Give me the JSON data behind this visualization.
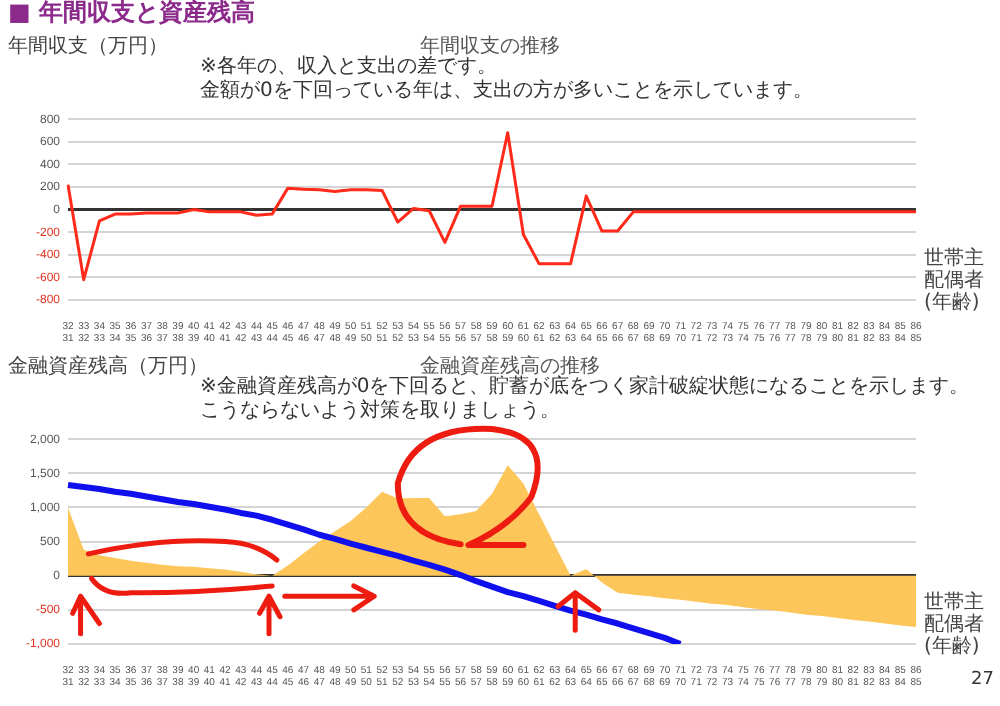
{
  "chart_data": [
    {
      "type": "line",
      "title": "年間収支の推移",
      "ylabel": "年間収支（万円）",
      "xlabel": "世帯主配偶者(年齢)",
      "annotations": [
        "■ 年間収支と資産残高",
        "※各年の、収入と支出の差です。",
        "金額が0を下回っている年は、支出の方が多いことを示しています。"
      ],
      "categories": [
        "32\n31",
        "33\n32",
        "34\n33",
        "35\n34",
        "36\n35",
        "37\n36",
        "38\n37",
        "39\n38",
        "40\n39",
        "41\n40",
        "42\n41",
        "43\n42",
        "44\n43",
        "45\n44",
        "46\n45",
        "47\n46",
        "48\n47",
        "49\n48",
        "50\n49",
        "51\n50",
        "52\n51",
        "53\n52",
        "54\n53",
        "55\n54",
        "56\n55",
        "57\n56",
        "58\n57",
        "59\n58",
        "60\n59",
        "61\n60",
        "62\n61",
        "63\n62",
        "64\n63",
        "65\n64",
        "66\n65",
        "67\n66",
        "68\n67",
        "69\n68",
        "70\n69",
        "71\n70",
        "72\n71",
        "73\n72",
        "74\n73",
        "75\n74",
        "76\n75",
        "77\n76",
        "78\n77",
        "79\n78",
        "80\n79",
        "81\n80",
        "82\n81",
        "83\n82",
        "84\n83",
        "85\n84",
        "86\n85"
      ],
      "series": [
        {
          "color": "#ff2a1a",
          "values": [
            220,
            -620,
            -100,
            -40,
            -40,
            -30,
            -30,
            -30,
            0,
            -20,
            -20,
            -20,
            -50,
            -40,
            190,
            180,
            175,
            160,
            175,
            175,
            170,
            -110,
            10,
            -10,
            -290,
            30,
            30,
            30,
            680,
            -220,
            -480,
            -480,
            -480,
            120,
            -190,
            -190,
            -20,
            -20,
            -20,
            -20,
            -20,
            -20,
            -20,
            -20,
            -20,
            -20,
            -20,
            -20,
            -20,
            -20,
            -20,
            -20,
            -20,
            -20,
            -20
          ]
        }
      ],
      "ylim": [
        -800,
        800
      ],
      "yticks": [
        -800,
        -600,
        -400,
        -200,
        0,
        200,
        400,
        600,
        800
      ],
      "grid": "y",
      "marker": "none"
    },
    {
      "type": "area",
      "title": "金融資産残高の推移",
      "ylabel": "金融資産残高（万円）",
      "xlabel": "世帯主配偶者(年齢)",
      "annotations": [
        "※金融資産残高が0を下回ると、貯蓄が底をつく家計破綻状態になることを示します。",
        "こうならないよう対策を取りましょう。",
        "27"
      ],
      "categories": [
        "32\n31",
        "33\n32",
        "34\n33",
        "35\n34",
        "36\n35",
        "37\n36",
        "38\n37",
        "39\n38",
        "40\n39",
        "41\n40",
        "42\n41",
        "43\n42",
        "44\n43",
        "45\n44",
        "46\n45",
        "47\n46",
        "48\n47",
        "49\n48",
        "50\n49",
        "51\n50",
        "52\n51",
        "53\n52",
        "54\n53",
        "55\n54",
        "56\n55",
        "57\n56",
        "58\n57",
        "59\n58",
        "60\n59",
        "61\n60",
        "62\n61",
        "63\n62",
        "64\n63",
        "65\n64",
        "66\n65",
        "67\n66",
        "68\n67",
        "69\n68",
        "70\n69",
        "71\n70",
        "72\n71",
        "73\n72",
        "74\n73",
        "75\n74",
        "76\n75",
        "77\n76",
        "78\n77",
        "79\n78",
        "80\n79",
        "81\n80",
        "82\n81",
        "83\n82",
        "84\n83",
        "85\n84",
        "86\n85"
      ],
      "series": [
        {
          "color": "#fcc65a",
          "values": [
            1000,
            380,
            300,
            260,
            220,
            190,
            160,
            140,
            130,
            110,
            90,
            60,
            20,
            0,
            150,
            330,
            500,
            650,
            800,
            1000,
            1230,
            1130,
            1140,
            1140,
            870,
            900,
            950,
            1200,
            1620,
            1350,
            900,
            450,
            0,
            100,
            -100,
            -250,
            -280,
            -300,
            -330,
            -350,
            -380,
            -410,
            -430,
            -460,
            -490,
            -510,
            -540,
            -570,
            -590,
            -620,
            -650,
            -670,
            -700,
            -730,
            -750
          ]
        },
        {
          "type": "line",
          "color": "#1010ee",
          "values": [
            1330,
            1300,
            1270,
            1230,
            1200,
            1160,
            1120,
            1080,
            1050,
            1010,
            970,
            920,
            880,
            820,
            750,
            680,
            600,
            540,
            470,
            410,
            350,
            290,
            220,
            160,
            90,
            10,
            -80,
            -160,
            -240,
            -300,
            -370,
            -440,
            -510,
            -570,
            -640,
            -700,
            -770,
            -840,
            -910,
            -1000,
            null,
            null,
            null,
            null,
            null,
            null,
            null,
            null,
            null,
            null,
            null,
            null,
            null,
            null,
            null
          ]
        }
      ],
      "ylim": [
        -1000,
        2000
      ],
      "yticks": [
        {
          "value": -1000,
          "label": "-1,000"
        },
        -500,
        0,
        500,
        {
          "value": 1000,
          "label": "1,000"
        },
        {
          "value": 1500,
          "label": "1,500"
        },
        {
          "value": 2000,
          "label": "2,000"
        }
      ],
      "grid": "y",
      "marker": "none"
    }
  ]
}
